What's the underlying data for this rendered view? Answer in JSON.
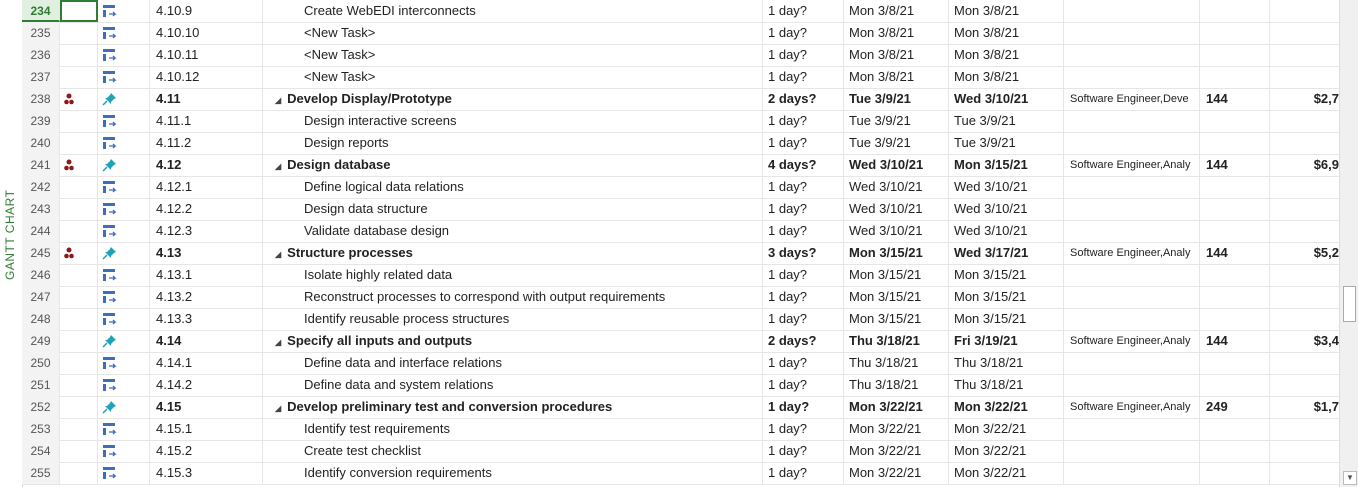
{
  "sidebar": {
    "view_label": "GANTT CHART"
  },
  "rows": [
    {
      "id": "234",
      "wbs": "4.10.9",
      "name": "Create WebEDI interconnects",
      "dur": "1 day?",
      "start": "Mon 3/8/21",
      "finish": "Mon 3/8/21",
      "res": "",
      "work": "",
      "cost": "",
      "summary": false,
      "selected": true
    },
    {
      "id": "235",
      "wbs": "4.10.10",
      "name": "<New Task>",
      "dur": "1 day?",
      "start": "Mon 3/8/21",
      "finish": "Mon 3/8/21",
      "res": "",
      "work": "",
      "cost": "",
      "summary": false
    },
    {
      "id": "236",
      "wbs": "4.10.11",
      "name": "<New Task>",
      "dur": "1 day?",
      "start": "Mon 3/8/21",
      "finish": "Mon 3/8/21",
      "res": "",
      "work": "",
      "cost": "",
      "summary": false
    },
    {
      "id": "237",
      "wbs": "4.10.12",
      "name": "<New Task>",
      "dur": "1 day?",
      "start": "Mon 3/8/21",
      "finish": "Mon 3/8/21",
      "res": "",
      "work": "",
      "cost": "",
      "summary": false
    },
    {
      "id": "238",
      "wbs": "4.11",
      "name": "Develop Display/Prototype",
      "dur": "2 days?",
      "start": "Tue 3/9/21",
      "finish": "Wed 3/10/21",
      "res": "Software Engineer,Deve",
      "work": "144",
      "cost": "$2,7",
      "summary": true,
      "res_icon": true
    },
    {
      "id": "239",
      "wbs": "4.11.1",
      "name": "Design interactive screens",
      "dur": "1 day?",
      "start": "Tue 3/9/21",
      "finish": "Tue 3/9/21",
      "res": "",
      "work": "",
      "cost": "",
      "summary": false
    },
    {
      "id": "240",
      "wbs": "4.11.2",
      "name": "Design reports",
      "dur": "1 day?",
      "start": "Tue 3/9/21",
      "finish": "Tue 3/9/21",
      "res": "",
      "work": "",
      "cost": "",
      "summary": false
    },
    {
      "id": "241",
      "wbs": "4.12",
      "name": "Design database",
      "dur": "4 days?",
      "start": "Wed 3/10/21",
      "finish": "Mon 3/15/21",
      "res": "Software Engineer,Analy",
      "work": "144",
      "cost": "$6,9",
      "summary": true,
      "res_icon": true
    },
    {
      "id": "242",
      "wbs": "4.12.1",
      "name": "Define logical data relations",
      "dur": "1 day?",
      "start": "Wed 3/10/21",
      "finish": "Wed 3/10/21",
      "res": "",
      "work": "",
      "cost": "",
      "summary": false
    },
    {
      "id": "243",
      "wbs": "4.12.2",
      "name": "Design data structure",
      "dur": "1 day?",
      "start": "Wed 3/10/21",
      "finish": "Wed 3/10/21",
      "res": "",
      "work": "",
      "cost": "",
      "summary": false
    },
    {
      "id": "244",
      "wbs": "4.12.3",
      "name": "Validate database design",
      "dur": "1 day?",
      "start": "Wed 3/10/21",
      "finish": "Wed 3/10/21",
      "res": "",
      "work": "",
      "cost": "",
      "summary": false
    },
    {
      "id": "245",
      "wbs": "4.13",
      "name": "Structure processes",
      "dur": "3 days?",
      "start": "Mon 3/15/21",
      "finish": "Wed 3/17/21",
      "res": "Software Engineer,Analy",
      "work": "144",
      "cost": "$5,2",
      "summary": true,
      "res_icon": true
    },
    {
      "id": "246",
      "wbs": "4.13.1",
      "name": "Isolate highly related data",
      "dur": "1 day?",
      "start": "Mon 3/15/21",
      "finish": "Mon 3/15/21",
      "res": "",
      "work": "",
      "cost": "",
      "summary": false
    },
    {
      "id": "247",
      "wbs": "4.13.2",
      "name": "Reconstruct processes to correspond with output requirements",
      "dur": "1 day?",
      "start": "Mon 3/15/21",
      "finish": "Mon 3/15/21",
      "res": "",
      "work": "",
      "cost": "",
      "summary": false
    },
    {
      "id": "248",
      "wbs": "4.13.3",
      "name": "Identify reusable process structures",
      "dur": "1 day?",
      "start": "Mon 3/15/21",
      "finish": "Mon 3/15/21",
      "res": "",
      "work": "",
      "cost": "",
      "summary": false
    },
    {
      "id": "249",
      "wbs": "4.14",
      "name": "Specify all inputs and outputs",
      "dur": "2 days?",
      "start": "Thu 3/18/21",
      "finish": "Fri 3/19/21",
      "res": "Software Engineer,Analy",
      "work": "144",
      "cost": "$3,4",
      "summary": true
    },
    {
      "id": "250",
      "wbs": "4.14.1",
      "name": "Define data and interface relations",
      "dur": "1 day?",
      "start": "Thu 3/18/21",
      "finish": "Thu 3/18/21",
      "res": "",
      "work": "",
      "cost": "",
      "summary": false
    },
    {
      "id": "251",
      "wbs": "4.14.2",
      "name": "Define data and system relations",
      "dur": "1 day?",
      "start": "Thu 3/18/21",
      "finish": "Thu 3/18/21",
      "res": "",
      "work": "",
      "cost": "",
      "summary": false
    },
    {
      "id": "252",
      "wbs": "4.15",
      "name": "Develop preliminary test and conversion procedures",
      "dur": "1 day?",
      "start": "Mon 3/22/21",
      "finish": "Mon 3/22/21",
      "res": "Software Engineer,Analy",
      "work": "249",
      "cost": "$1,7",
      "summary": true
    },
    {
      "id": "253",
      "wbs": "4.15.1",
      "name": "Identify test requirements",
      "dur": "1 day?",
      "start": "Mon 3/22/21",
      "finish": "Mon 3/22/21",
      "res": "",
      "work": "",
      "cost": "",
      "summary": false
    },
    {
      "id": "254",
      "wbs": "4.15.2",
      "name": "Create test checklist",
      "dur": "1 day?",
      "start": "Mon 3/22/21",
      "finish": "Mon 3/22/21",
      "res": "",
      "work": "",
      "cost": "",
      "summary": false
    },
    {
      "id": "255",
      "wbs": "4.15.3",
      "name": "Identify conversion requirements",
      "dur": "1 day?",
      "start": "Mon 3/22/21",
      "finish": "Mon 3/22/21",
      "res": "",
      "work": "",
      "cost": "",
      "summary": false
    }
  ],
  "colors": {
    "accent": "#2e7d32",
    "task_icon": "#3b6fb6",
    "summary_icon": "#1fa3b8",
    "resource_icon": "#8b1a1a"
  }
}
